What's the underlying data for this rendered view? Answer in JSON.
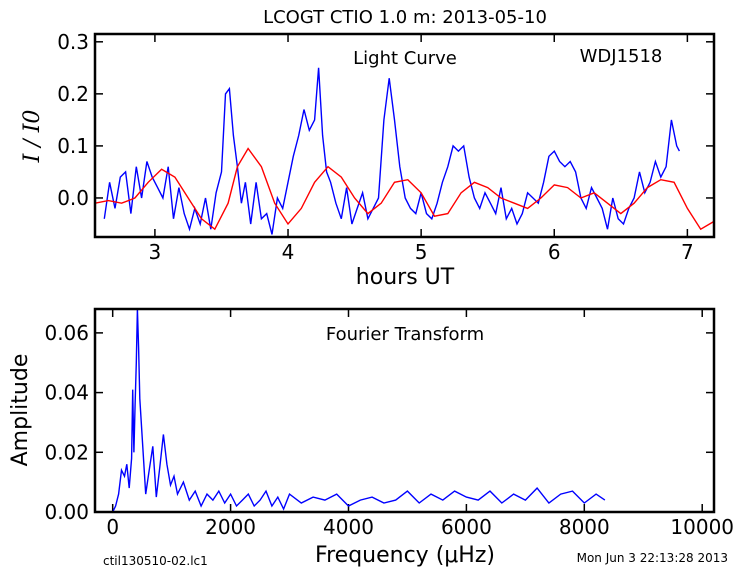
{
  "figure": {
    "title": "LCOGT CTIO 1.0 m:  2013-05-10",
    "footer_left": "ctil130510-02.lc1",
    "footer_right": "Mon Jun  3 22:13:28 2013"
  },
  "chart_data": [
    {
      "type": "line",
      "panel": "top",
      "title": "Light Curve",
      "annotation": "WDJ1518",
      "xlabel": "hours UT",
      "ylabel": "I / I0",
      "xlim": [
        2.55,
        7.2
      ],
      "ylim": [
        -0.075,
        0.315
      ],
      "x_ticks": [
        3,
        4,
        5,
        6,
        7
      ],
      "y_ticks": [
        0.0,
        0.1,
        0.2,
        0.3
      ],
      "x_tick_labels": [
        "3",
        "4",
        "5",
        "6",
        "7"
      ],
      "y_tick_labels": [
        "0.0",
        "0.1",
        "0.2",
        "0.3"
      ],
      "series": [
        {
          "color": "#0000ff",
          "x": [
            2.62,
            2.66,
            2.7,
            2.74,
            2.78,
            2.82,
            2.86,
            2.9,
            2.94,
            2.98,
            3.02,
            3.06,
            3.1,
            3.14,
            3.18,
            3.22,
            3.26,
            3.3,
            3.34,
            3.38,
            3.42,
            3.46,
            3.5,
            3.53,
            3.56,
            3.59,
            3.62,
            3.65,
            3.68,
            3.72,
            3.76,
            3.8,
            3.84,
            3.88,
            3.92,
            3.96,
            4.0,
            4.04,
            4.08,
            4.12,
            4.16,
            4.2,
            4.23,
            4.26,
            4.29,
            4.32,
            4.36,
            4.4,
            4.44,
            4.48,
            4.52,
            4.56,
            4.6,
            4.64,
            4.68,
            4.72,
            4.76,
            4.8,
            4.84,
            4.88,
            4.92,
            4.96,
            5.0,
            5.04,
            5.08,
            5.12,
            5.16,
            5.2,
            5.24,
            5.28,
            5.32,
            5.36,
            5.4,
            5.44,
            5.48,
            5.52,
            5.56,
            5.6,
            5.64,
            5.68,
            5.72,
            5.76,
            5.8,
            5.84,
            5.88,
            5.92,
            5.96,
            6.0,
            6.04,
            6.08,
            6.12,
            6.16,
            6.2,
            6.24,
            6.28,
            6.32,
            6.36,
            6.4,
            6.44,
            6.48,
            6.52,
            6.56,
            6.6,
            6.64,
            6.68,
            6.72,
            6.76,
            6.8,
            6.84,
            6.88,
            6.92,
            6.94
          ],
          "y": [
            -0.04,
            0.03,
            -0.02,
            0.04,
            0.05,
            -0.03,
            0.06,
            0.0,
            0.07,
            0.04,
            0.02,
            0.0,
            0.06,
            -0.04,
            0.02,
            -0.03,
            -0.06,
            -0.02,
            -0.05,
            0.0,
            -0.06,
            0.01,
            0.05,
            0.2,
            0.21,
            0.12,
            0.06,
            -0.01,
            0.03,
            -0.05,
            0.03,
            -0.04,
            -0.03,
            -0.07,
            0.0,
            -0.02,
            0.03,
            0.08,
            0.12,
            0.17,
            0.13,
            0.15,
            0.25,
            0.12,
            0.05,
            0.03,
            -0.01,
            -0.04,
            0.02,
            -0.05,
            -0.02,
            0.01,
            -0.04,
            -0.02,
            0.0,
            0.15,
            0.23,
            0.15,
            0.06,
            0.0,
            -0.02,
            -0.03,
            0.01,
            -0.03,
            -0.04,
            -0.01,
            0.03,
            0.06,
            0.1,
            0.09,
            0.1,
            0.04,
            0.0,
            -0.02,
            0.01,
            -0.01,
            -0.03,
            0.02,
            -0.04,
            -0.02,
            -0.05,
            -0.03,
            0.01,
            0.0,
            -0.01,
            0.03,
            0.08,
            0.09,
            0.07,
            0.06,
            0.07,
            0.05,
            0.0,
            -0.02,
            0.02,
            0.0,
            -0.02,
            -0.06,
            0.0,
            -0.04,
            -0.05,
            -0.02,
            0.0,
            0.05,
            0.01,
            0.03,
            0.07,
            0.04,
            0.06,
            0.15,
            0.1,
            0.09
          ]
        },
        {
          "color": "#ff0000",
          "x": [
            2.55,
            2.65,
            2.75,
            2.85,
            2.95,
            3.05,
            3.15,
            3.25,
            3.35,
            3.45,
            3.55,
            3.62,
            3.7,
            3.8,
            3.9,
            4.0,
            4.1,
            4.2,
            4.3,
            4.4,
            4.5,
            4.6,
            4.7,
            4.8,
            4.9,
            5.0,
            5.1,
            5.2,
            5.3,
            5.4,
            5.5,
            5.6,
            5.7,
            5.8,
            5.9,
            6.0,
            6.1,
            6.2,
            6.3,
            6.4,
            6.5,
            6.6,
            6.7,
            6.8,
            6.9,
            7.0,
            7.1,
            7.2
          ],
          "y": [
            -0.01,
            -0.005,
            -0.01,
            0.0,
            0.03,
            0.055,
            0.04,
            0.0,
            -0.04,
            -0.06,
            -0.01,
            0.06,
            0.095,
            0.06,
            -0.01,
            -0.05,
            -0.02,
            0.03,
            0.06,
            0.04,
            0.0,
            -0.03,
            -0.01,
            0.03,
            0.035,
            0.01,
            -0.035,
            -0.03,
            0.01,
            0.03,
            0.02,
            0.0,
            -0.01,
            -0.02,
            0.0,
            0.025,
            0.02,
            0.0,
            0.01,
            -0.01,
            -0.03,
            -0.01,
            0.02,
            0.035,
            0.03,
            -0.02,
            -0.06,
            -0.045
          ]
        }
      ]
    },
    {
      "type": "line",
      "panel": "bottom",
      "title": "Fourier Transform",
      "xlabel": "Frequency (μHz)",
      "ylabel": "Amplitude",
      "xlim": [
        -300,
        10200
      ],
      "ylim": [
        0,
        0.068
      ],
      "x_ticks": [
        0,
        2000,
        4000,
        6000,
        8000,
        10000
      ],
      "y_ticks": [
        0.0,
        0.02,
        0.04,
        0.06
      ],
      "x_tick_labels": [
        "0",
        "2000",
        "4000",
        "6000",
        "8000",
        "10000"
      ],
      "y_tick_labels": [
        "0.00",
        "0.02",
        "0.04",
        "0.06"
      ],
      "series": [
        {
          "color": "#0000ff",
          "x": [
            0,
            50,
            100,
            150,
            200,
            240,
            280,
            320,
            340,
            360,
            380,
            400,
            420,
            440,
            460,
            500,
            560,
            620,
            680,
            740,
            800,
            860,
            920,
            980,
            1040,
            1100,
            1200,
            1300,
            1400,
            1500,
            1600,
            1700,
            1800,
            1900,
            2000,
            2100,
            2200,
            2300,
            2400,
            2500,
            2600,
            2700,
            2800,
            2900,
            3000,
            3200,
            3400,
            3600,
            3800,
            4000,
            4200,
            4400,
            4600,
            4800,
            5000,
            5200,
            5400,
            5600,
            5800,
            6000,
            6200,
            6400,
            6600,
            6800,
            7000,
            7200,
            7400,
            7600,
            7800,
            8000,
            8200,
            8350
          ],
          "y": [
            0.0,
            0.002,
            0.006,
            0.014,
            0.012,
            0.016,
            0.008,
            0.018,
            0.041,
            0.02,
            0.036,
            0.05,
            0.068,
            0.055,
            0.038,
            0.025,
            0.006,
            0.014,
            0.022,
            0.005,
            0.015,
            0.026,
            0.016,
            0.009,
            0.012,
            0.006,
            0.01,
            0.004,
            0.007,
            0.002,
            0.006,
            0.004,
            0.007,
            0.003,
            0.006,
            0.002,
            0.004,
            0.006,
            0.002,
            0.004,
            0.007,
            0.002,
            0.005,
            0.001,
            0.006,
            0.003,
            0.005,
            0.004,
            0.006,
            0.002,
            0.004,
            0.005,
            0.003,
            0.004,
            0.007,
            0.003,
            0.006,
            0.004,
            0.007,
            0.005,
            0.004,
            0.007,
            0.003,
            0.006,
            0.004,
            0.008,
            0.003,
            0.006,
            0.007,
            0.003,
            0.006,
            0.004
          ]
        }
      ]
    }
  ]
}
